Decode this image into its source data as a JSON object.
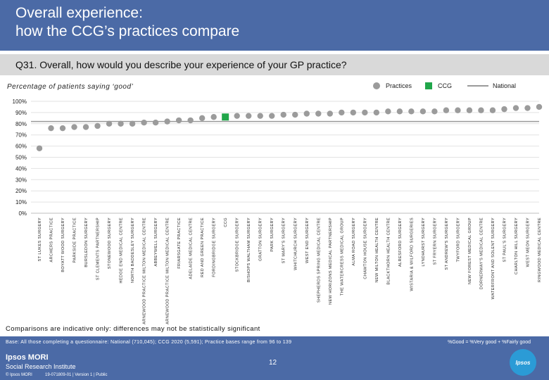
{
  "header": {
    "title": "Overall experience:\nhow the CCG’s practices compare"
  },
  "question": "Q31. Overall, how would you describe your experience of your GP practice?",
  "subtitle": "Percentage of patients saying ‘good’",
  "legend": {
    "practices": "Practices",
    "ccg": "CCG",
    "national": "National"
  },
  "colors": {
    "practice": "#9b9b9b",
    "ccg": "#21a64a",
    "national": "#9a9a9a",
    "brand": "#4b6aa6"
  },
  "chart_data": {
    "type": "scatter",
    "ylabel": "",
    "ylim": [
      0,
      100
    ],
    "y_ticks": [
      "0%",
      "10%",
      "20%",
      "30%",
      "40%",
      "50%",
      "60%",
      "70%",
      "80%",
      "90%",
      "100%"
    ],
    "national_value": 82,
    "categories": [
      "ST LUKES SURGERY",
      "ARCHERS PRACTICE",
      "BOYATT WOOD SURGERY",
      "PARKSIDE PRACTICE",
      "BURSLEDON SURGERY",
      "ST CLEMENTS PARTNERSHIP",
      "STONEWOOD SURGERY",
      "HEDGE END MEDICAL CENTRE",
      "NORTH BADDESLEY SURGERY",
      "THE ARNEWOOD PRACTICE MILTON MEDICAL CENTRE",
      "ABBEYWELL SURGERY",
      "THE ARNEWOOD PRACTICE MILTON MEDICAL CENTRE",
      "FRIARSGATE PRACTICE",
      "ADELAIDE MEDICAL CENTRE",
      "RED AND GREEN PRACTICE",
      "FORDINGBRIDGE SURGERY",
      "CCG",
      "STOCKBRIDGE SURGERY",
      "BISHOPS WALTHAM SURGERY",
      "GRATTON SURGERY",
      "PARK SURGERY",
      "ST MARY'S SURGERY",
      "WHITCHURCH SURGERY",
      "WEST END SURGERY",
      "SHEPHERDS SPRING MEDICAL CENTRE",
      "NEW HORIZONS MEDICAL PARTNERSHIP",
      "THE WATERCRESS MEDICAL GROUP",
      "ALMA ROAD SURGERY",
      "CHAWTON HOUSE SURGERY",
      "NEW MILTON HEALTH CENTRE",
      "BLACKTHORN HEALTH CENTRE",
      "ALRESFORD SURGERY",
      "WISTARIA & WILFORD SURGERIES",
      "LYNDHURST SURGERY",
      "ST FRYERN SURGERY",
      "ST ANDREW'S SURGERY",
      "TWYFORD SURGERY",
      "NEW FOREST MEDICAL GROUP",
      "DORNERWAY'S MEDICAL CENTRE",
      "WATERFRONT AND SOLENT SURGERY",
      "ST PAUL'S SURGERY",
      "CHARLTON HILL SURGERY",
      "WEST MEON SURGERY",
      "RINGWOOD MEDICAL CENTRE"
    ],
    "values": [
      58,
      76,
      76,
      77,
      77,
      78,
      80,
      80,
      80,
      81,
      81,
      82,
      83,
      83,
      85,
      86,
      86,
      87,
      87,
      87,
      87,
      88,
      88,
      89,
      89,
      89,
      90,
      90,
      90,
      90,
      91,
      91,
      91,
      91,
      91,
      92,
      92,
      92,
      92,
      92,
      93,
      94,
      94,
      95
    ],
    "ccg_index": 16
  },
  "note": "Comparisons are indicative only: differences may not be statistically significant",
  "footer": {
    "base": "Base: All those completing a questionnaire: National (710,045); CCG 2020 (5,591); Practice bases range from 96 to 139",
    "good_note": "%Good = %Very good + %Fairly good",
    "logo_line1": "Ipsos MORI",
    "logo_line2": "Social Research Institute",
    "copyright": "© Ipsos MORI",
    "ref": "19-071809-01 | Version 1 | Public",
    "page": "12",
    "badge": "Ipsos"
  }
}
